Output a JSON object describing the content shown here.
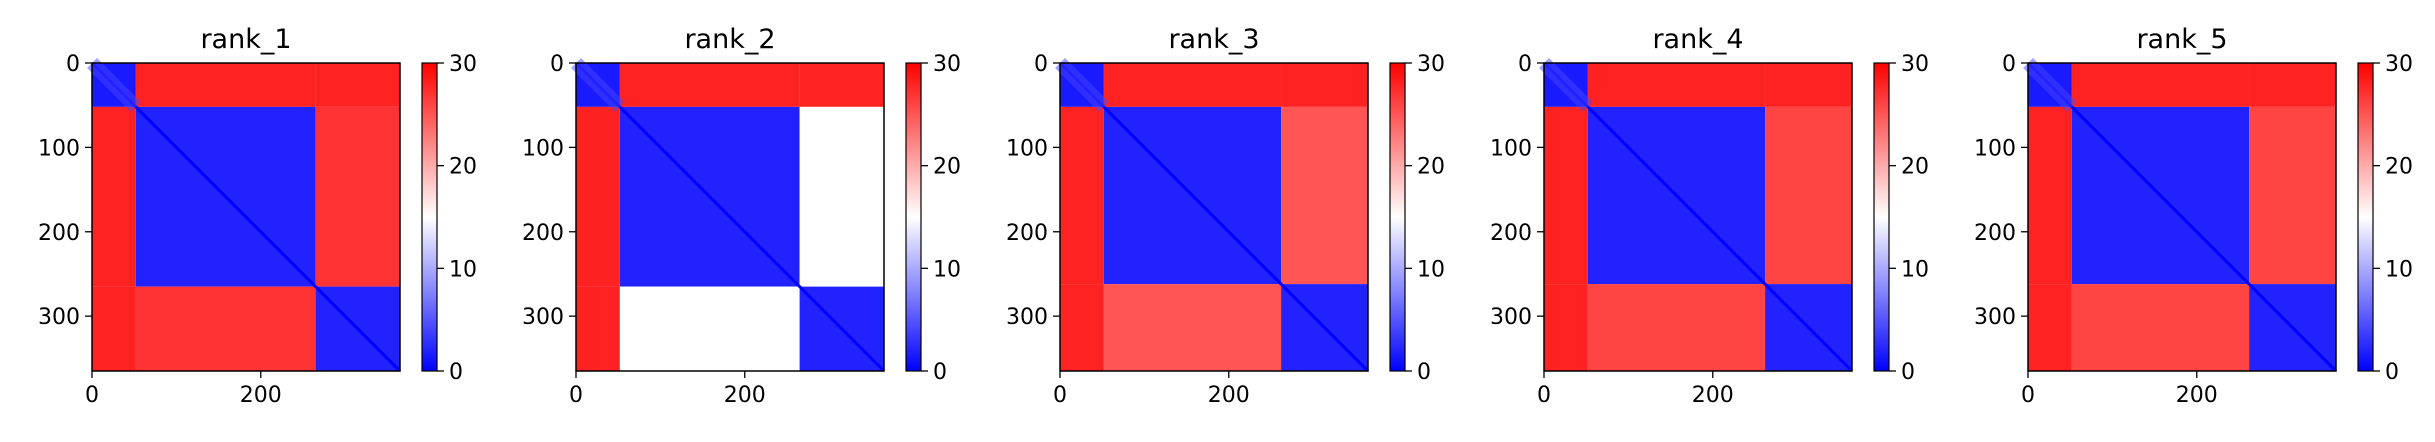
{
  "figure": {
    "colormap": [
      "#0000ff",
      "#ffffff",
      "#ff0000"
    ],
    "colorbar_range": [
      0,
      30
    ],
    "colorbar_ticks": [
      "0",
      "10",
      "20",
      "30"
    ]
  },
  "chart_data": [
    {
      "type": "heatmap",
      "title": "rank_1",
      "x_range": [
        0,
        365
      ],
      "y_range": [
        0,
        365
      ],
      "x_ticks": [
        "0",
        "200"
      ],
      "y_ticks": [
        "0",
        "100",
        "200",
        "300"
      ],
      "domain_boundaries": [
        52,
        265
      ],
      "value_range": [
        0,
        30
      ],
      "block_values": [
        [
          1.5,
          28,
          28
        ],
        [
          28,
          2,
          27
        ],
        [
          28,
          27,
          2
        ]
      ]
    },
    {
      "type": "heatmap",
      "title": "rank_2",
      "x_range": [
        0,
        365
      ],
      "y_range": [
        0,
        365
      ],
      "x_ticks": [
        "0",
        "200"
      ],
      "y_ticks": [
        "0",
        "100",
        "200",
        "300"
      ],
      "domain_boundaries": [
        52,
        265
      ],
      "value_range": [
        0,
        30
      ],
      "block_values": [
        [
          1.5,
          28,
          28
        ],
        [
          28,
          2,
          15
        ],
        [
          28,
          15,
          2
        ]
      ]
    },
    {
      "type": "heatmap",
      "title": "rank_3",
      "x_range": [
        0,
        365
      ],
      "y_range": [
        0,
        365
      ],
      "x_ticks": [
        "0",
        "200"
      ],
      "y_ticks": [
        "0",
        "100",
        "200",
        "300"
      ],
      "domain_boundaries": [
        52,
        262
      ],
      "value_range": [
        0,
        30
      ],
      "block_values": [
        [
          1.5,
          28,
          28
        ],
        [
          28,
          2,
          25
        ],
        [
          28,
          25,
          2
        ]
      ]
    },
    {
      "type": "heatmap",
      "title": "rank_4",
      "x_range": [
        0,
        365
      ],
      "y_range": [
        0,
        365
      ],
      "x_ticks": [
        "0",
        "200"
      ],
      "y_ticks": [
        "0",
        "100",
        "200",
        "300"
      ],
      "domain_boundaries": [
        52,
        262
      ],
      "value_range": [
        0,
        30
      ],
      "block_values": [
        [
          1.5,
          28,
          28
        ],
        [
          28,
          2,
          26
        ],
        [
          28,
          26,
          2
        ]
      ]
    },
    {
      "type": "heatmap",
      "title": "rank_5",
      "x_range": [
        0,
        365
      ],
      "y_range": [
        0,
        365
      ],
      "x_ticks": [
        "0",
        "200"
      ],
      "y_ticks": [
        "0",
        "100",
        "200",
        "300"
      ],
      "domain_boundaries": [
        52,
        262
      ],
      "value_range": [
        0,
        30
      ],
      "block_values": [
        [
          1.5,
          28,
          28
        ],
        [
          28,
          2,
          26
        ],
        [
          28,
          26,
          2
        ]
      ]
    }
  ]
}
